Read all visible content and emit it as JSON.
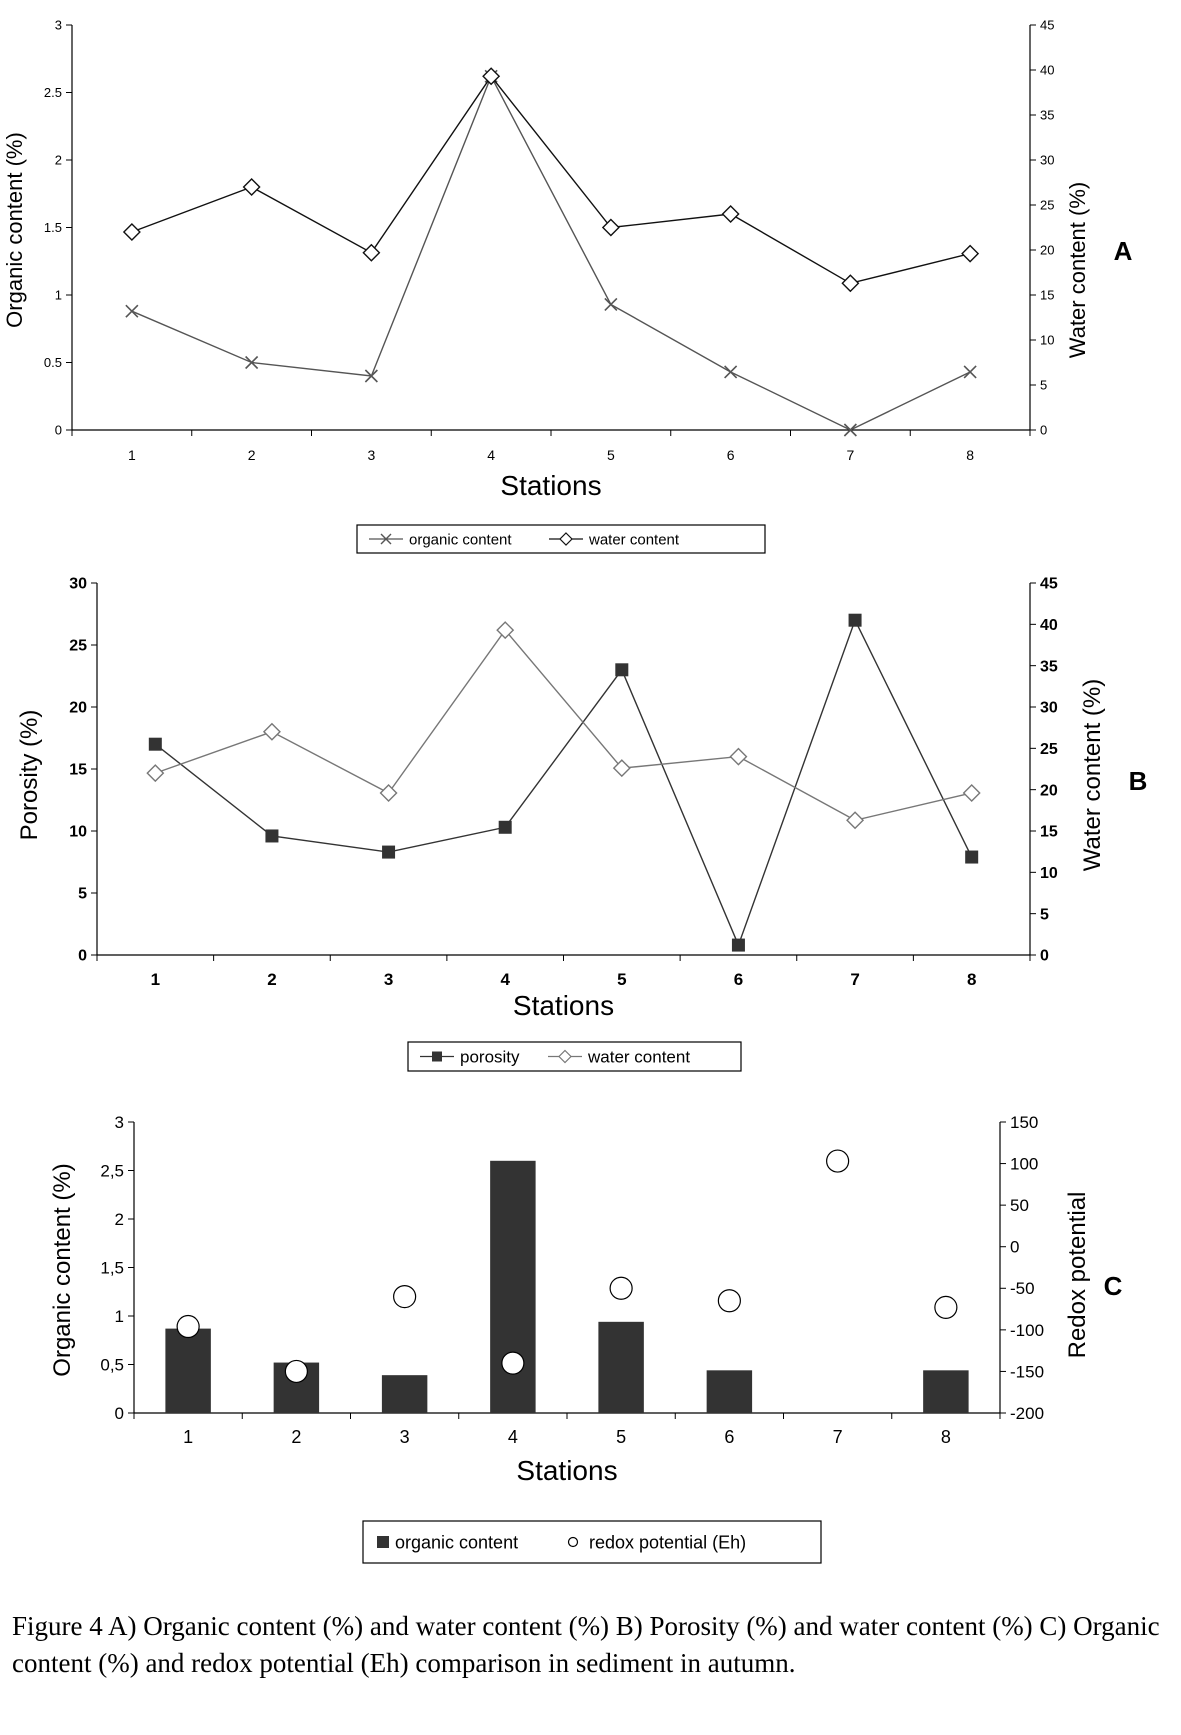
{
  "figure_caption": "Figure 4 A) Organic content (%) and water content (%) B) Porosity (%) and water content (%) C) Organic content (%) and redox potential (Eh) comparison in sediment in autumn.",
  "chart_data": [
    {
      "panel": "A",
      "type": "line",
      "categories": [
        "1",
        "2",
        "3",
        "4",
        "5",
        "6",
        "7",
        "8"
      ],
      "xlabel": "Stations",
      "ylabel": "Organic content (%)",
      "ylabel2": "Water content (%)",
      "ylim": [
        0,
        3
      ],
      "yticks": [
        "0",
        "0.5",
        "1",
        "1.5",
        "2",
        "2.5",
        "3"
      ],
      "ylim2": [
        0,
        45
      ],
      "yticks2": [
        "0",
        "5",
        "10",
        "15",
        "20",
        "25",
        "30",
        "35",
        "40",
        "45"
      ],
      "series": [
        {
          "name": "organic content",
          "axis": "left",
          "marker": "x",
          "color": "#555555",
          "values": [
            0.88,
            0.5,
            0.4,
            2.62,
            0.93,
            0.43,
            0.0,
            0.43
          ]
        },
        {
          "name": "water content",
          "axis": "right",
          "marker": "diamond",
          "color": "#111111",
          "values": [
            22,
            27,
            19.7,
            39.3,
            22.5,
            24,
            16.3,
            19.6
          ]
        }
      ],
      "legend": "bottom-center",
      "grid": false
    },
    {
      "panel": "B",
      "type": "line",
      "categories": [
        "1",
        "2",
        "3",
        "4",
        "5",
        "6",
        "7",
        "8"
      ],
      "xlabel": "Stations",
      "ylabel": "Porosity (%)",
      "ylabel2": "Water content (%)",
      "ylim": [
        0,
        30
      ],
      "yticks": [
        "0",
        "5",
        "10",
        "15",
        "20",
        "25",
        "30"
      ],
      "ylim2": [
        0,
        45
      ],
      "yticks2": [
        "0",
        "5",
        "10",
        "15",
        "20",
        "25",
        "30",
        "35",
        "40",
        "45"
      ],
      "series": [
        {
          "name": "porosity",
          "axis": "left",
          "marker": "square",
          "color": "#333333",
          "values": [
            17,
            9.6,
            8.3,
            10.3,
            23,
            0.8,
            27,
            7.9
          ]
        },
        {
          "name": "water content",
          "axis": "right",
          "marker": "diamond",
          "color": "#777777",
          "values": [
            22,
            27,
            19.6,
            39.3,
            22.6,
            24,
            16.3,
            19.6
          ]
        }
      ],
      "legend": "bottom-center",
      "grid": false
    },
    {
      "panel": "C",
      "type": "bar",
      "categories": [
        "1",
        "2",
        "3",
        "4",
        "5",
        "6",
        "7",
        "8"
      ],
      "xlabel": "Stations",
      "ylabel": "Organic content (%)",
      "ylabel2": "Redox potential",
      "ylim": [
        0,
        3
      ],
      "yticks": [
        "0",
        "0,5",
        "1",
        "1,5",
        "2",
        "2,5",
        "3"
      ],
      "ylim2": [
        -200,
        150
      ],
      "yticks2": [
        "-200",
        "-150",
        "-100",
        "-50",
        "0",
        "50",
        "100",
        "150"
      ],
      "series": [
        {
          "name": "organic content",
          "axis": "left",
          "kind": "bar",
          "color": "#333333",
          "values": [
            0.87,
            0.52,
            0.39,
            2.6,
            0.94,
            0.44,
            0.0,
            0.44
          ]
        },
        {
          "name": "redox potential (Eh)",
          "axis": "right",
          "kind": "point",
          "color": "#ffffff",
          "values": [
            -96,
            -150,
            -60,
            -140,
            -50,
            -65,
            103,
            -73
          ]
        }
      ],
      "legend": "bottom-center",
      "grid": false
    }
  ]
}
